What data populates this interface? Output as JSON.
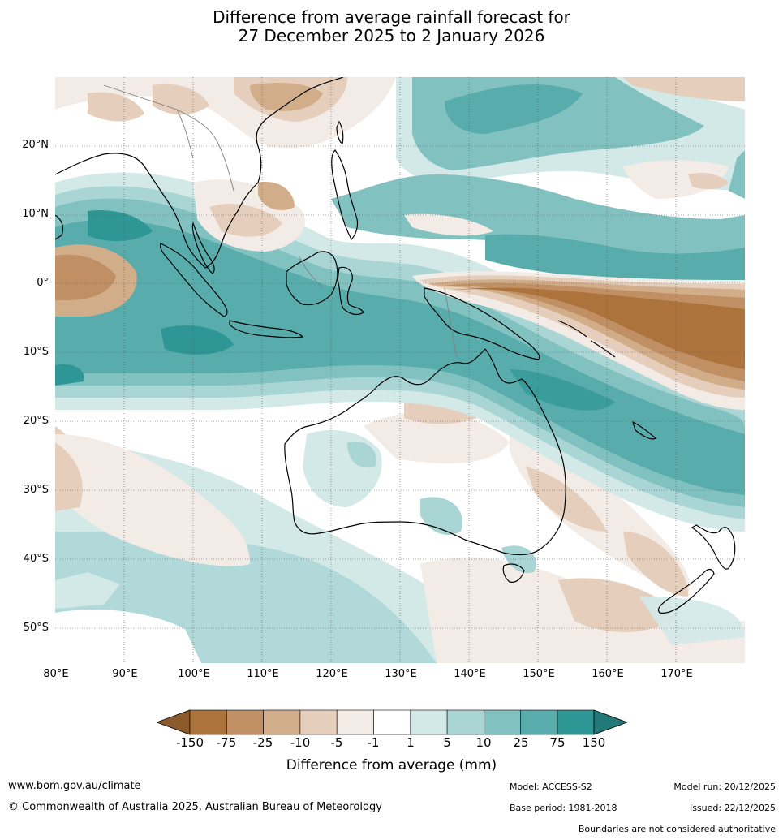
{
  "title": {
    "line1": "Difference from average rainfall forecast for",
    "line2": "27 December 2025 to 2 January 2026"
  },
  "axes": {
    "lat_labels": [
      "20°N",
      "10°N",
      "0°",
      "10°S",
      "20°S",
      "30°S",
      "40°S",
      "50°S"
    ],
    "lon_labels": [
      "80°E",
      "90°E",
      "100°E",
      "110°E",
      "120°E",
      "130°E",
      "140°E",
      "150°E",
      "160°E",
      "170°E"
    ]
  },
  "map": {
    "lon_range": [
      80,
      180
    ],
    "lat_range": [
      -55,
      30
    ],
    "regions": [
      "Indian Ocean",
      "Maritime Continent",
      "Australia",
      "New Zealand",
      "Western Pacific"
    ]
  },
  "colorbar": {
    "title": "Difference from average (mm)",
    "ticks": [
      "-150",
      "-75",
      "-25",
      "-10",
      "-5",
      "-1",
      "1",
      "5",
      "10",
      "25",
      "75",
      "150"
    ],
    "colors": [
      "#8c5a2b",
      "#ac733d",
      "#c09064",
      "#d2ad8a",
      "#e5cfbc",
      "#f3ebe5",
      "#ffffff",
      "#d3e9e8",
      "#a9d5d4",
      "#81c1c0",
      "#58acab",
      "#2e9795",
      "#227977"
    ]
  },
  "footer": {
    "website": "www.bom.gov.au/climate",
    "copyright": "© Commonwealth of Australia 2025, Australian Bureau of Meteorology",
    "model": "Model: ACCESS-S2",
    "base_period": "Base period: 1981-2018",
    "model_run": "Model run: 20/12/2025",
    "issued": "Issued: 22/12/2025",
    "disclaimer": "Boundaries are not considered authoritative"
  }
}
